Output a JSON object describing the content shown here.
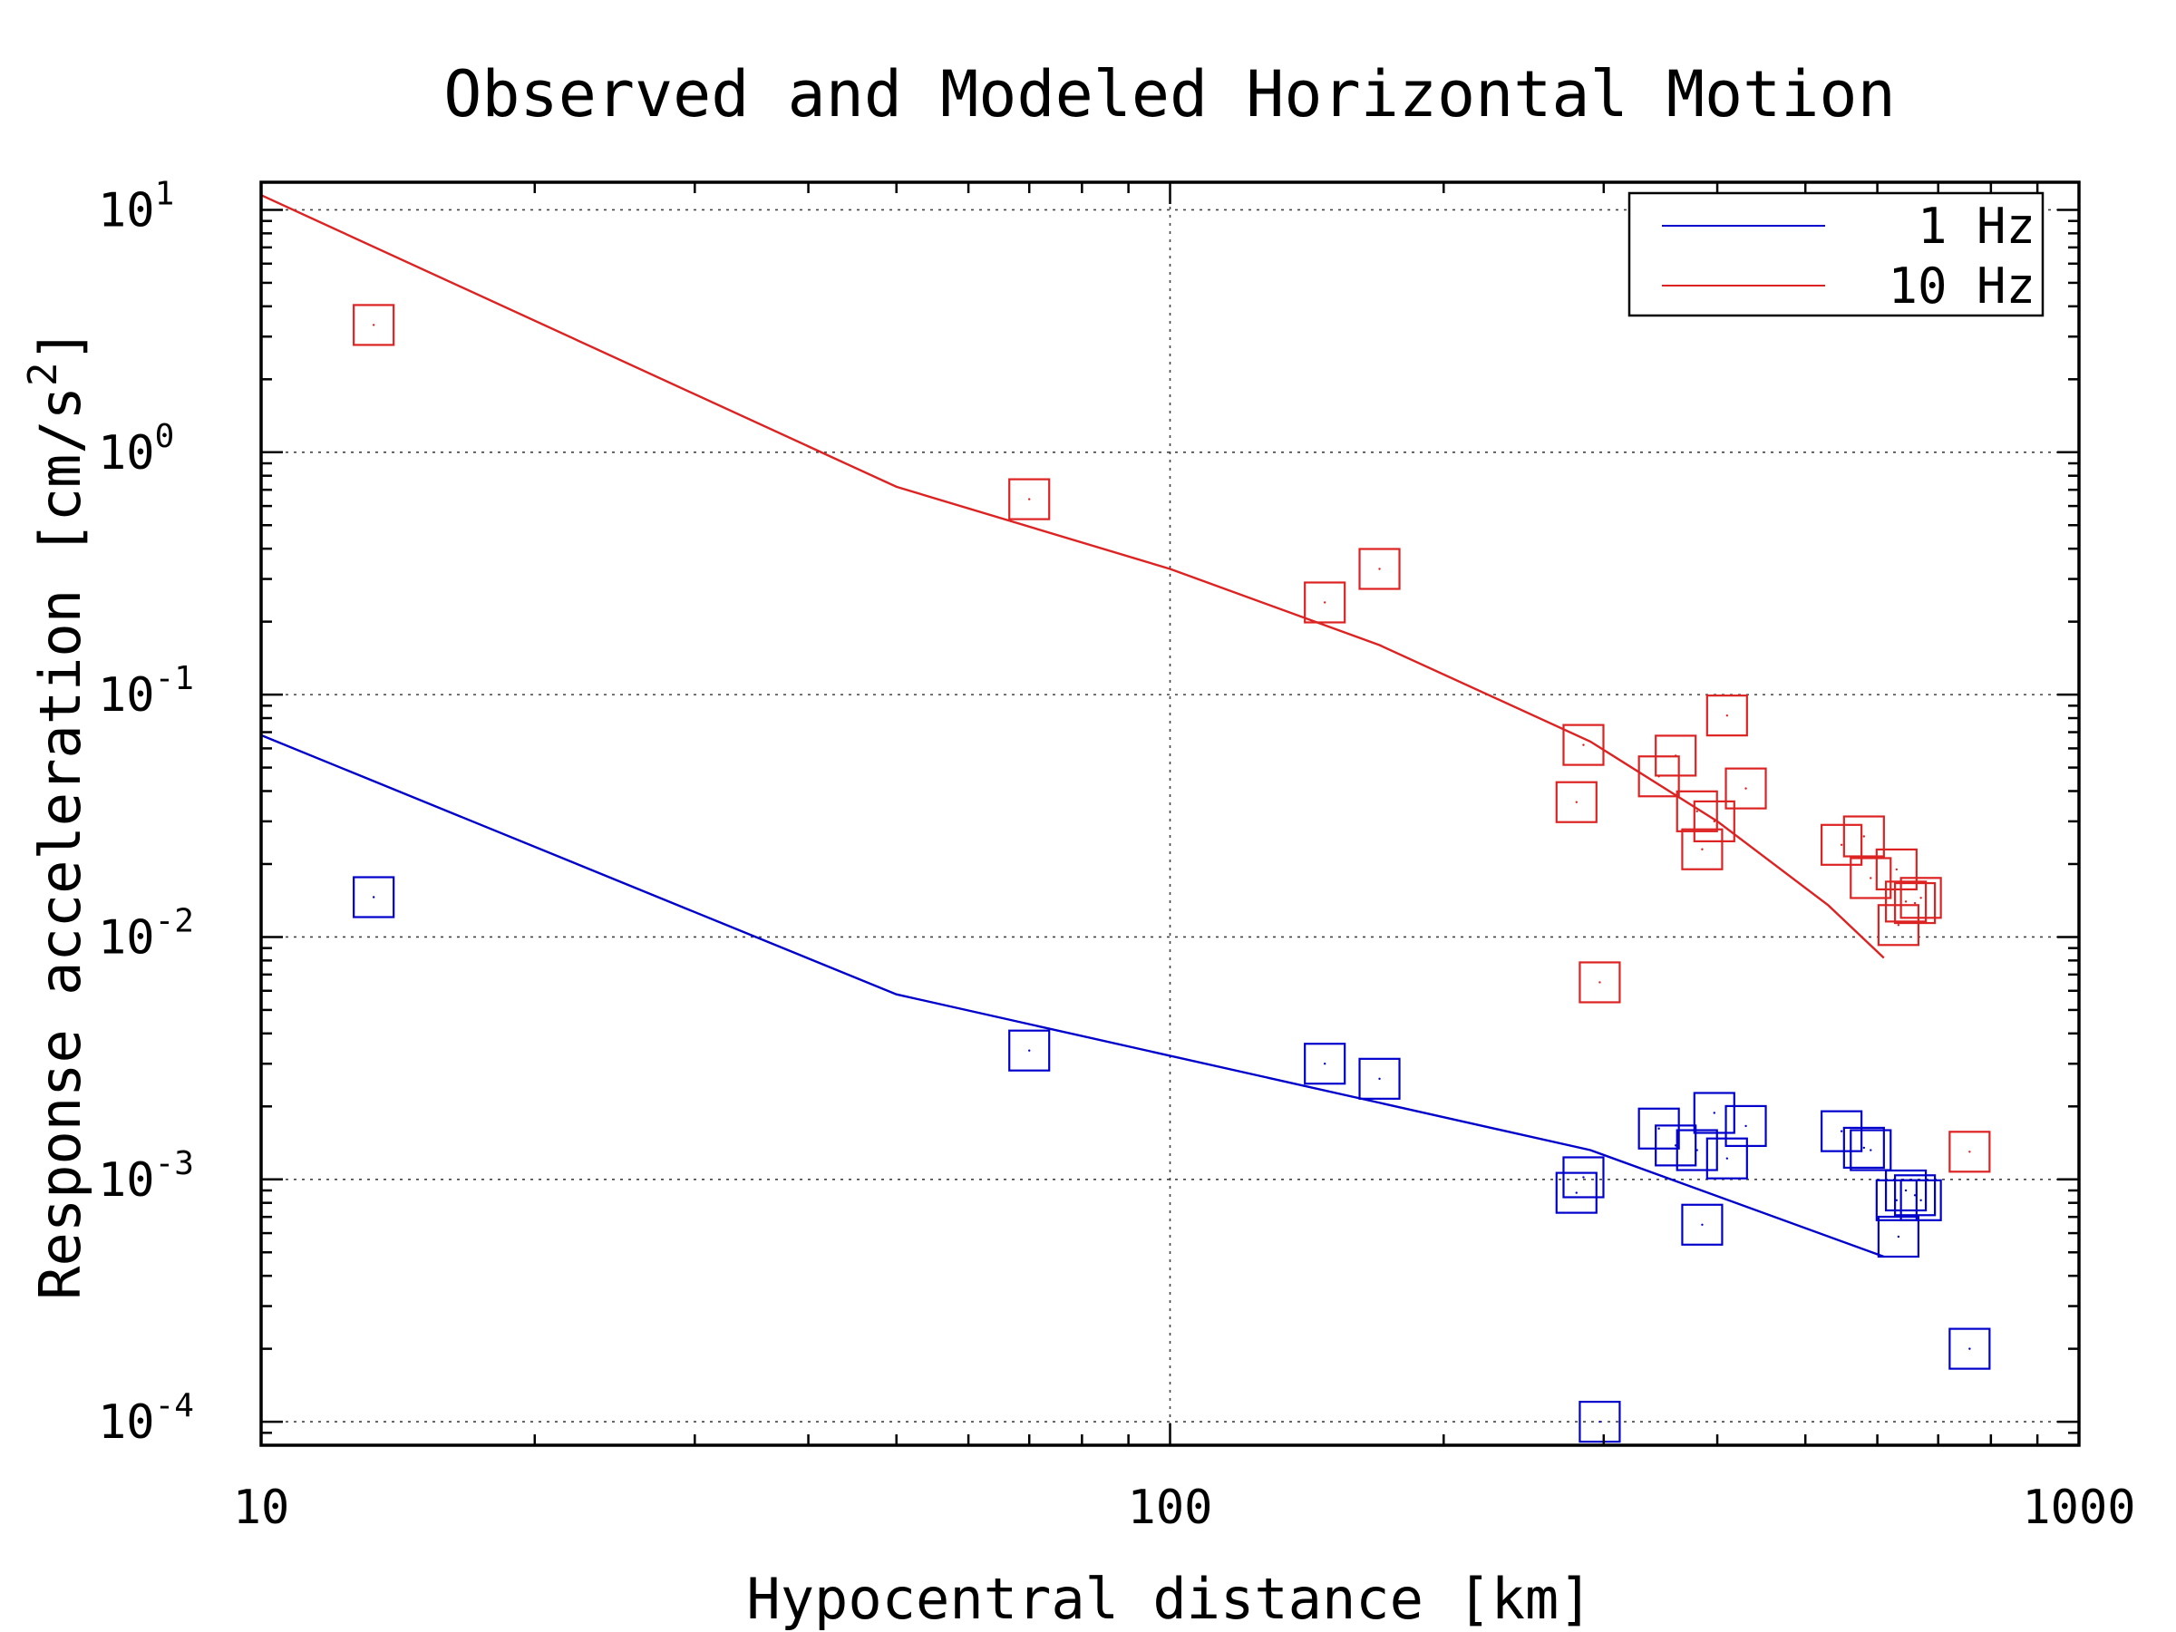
{
  "chart_data": {
    "type": "scatter",
    "title": "Observed and Modeled Horizontal Motion",
    "xlabel": "Hypocentral distance [km]",
    "ylabel": "Response acceleration [cm/s",
    "ylabel_superscript": "2",
    "ylabel_suffix": "]",
    "xscale": "log",
    "yscale": "log",
    "xlim": [
      10,
      1000
    ],
    "ylim": [
      8e-05,
      13
    ],
    "grid": true,
    "legend_position": "top-right",
    "x_ticks": [
      {
        "value": 10,
        "label": "10"
      },
      {
        "value": 100,
        "label": "100"
      },
      {
        "value": 1000,
        "label": "1000"
      }
    ],
    "y_ticks": [
      {
        "value": 10,
        "base": "10",
        "exp": "1"
      },
      {
        "value": 1,
        "base": "10",
        "exp": "0"
      },
      {
        "value": 0.1,
        "base": "10",
        "exp": "-1"
      },
      {
        "value": 0.01,
        "base": "10",
        "exp": "-2"
      },
      {
        "value": 0.001,
        "base": "10",
        "exp": "-3"
      },
      {
        "value": 0.0001,
        "base": "10",
        "exp": "-4"
      }
    ],
    "series": [
      {
        "name": "1 Hz",
        "color": "#0000cc",
        "model_x": [
          10,
          50,
          290,
          610
        ],
        "model_y": [
          0.068,
          0.0058,
          0.00132,
          0.00048
        ],
        "observed": [
          [
            13.3,
            0.0146
          ],
          [
            70,
            0.0034
          ],
          [
            148,
            0.003
          ],
          [
            170,
            0.0026
          ],
          [
            280,
            0.00088
          ],
          [
            285,
            0.00102
          ],
          [
            297,
            0.0001
          ],
          [
            345,
            0.00162
          ],
          [
            360,
            0.00138
          ],
          [
            380,
            0.00132
          ],
          [
            385,
            0.00065
          ],
          [
            397,
            0.00188
          ],
          [
            410,
            0.00122
          ],
          [
            430,
            0.00166
          ],
          [
            548,
            0.00158
          ],
          [
            580,
            0.00135
          ],
          [
            590,
            0.00132
          ],
          [
            630,
            0.00082
          ],
          [
            633,
            0.00058
          ],
          [
            645,
            0.0009
          ],
          [
            660,
            0.00086
          ],
          [
            670,
            0.00082
          ],
          [
            758,
            0.0002
          ]
        ]
      },
      {
        "name": "10 Hz",
        "color": "#dd2222",
        "model_x": [
          10,
          50,
          100,
          170,
          290,
          400,
          530,
          610
        ],
        "model_y": [
          11.5,
          0.72,
          0.33,
          0.16,
          0.064,
          0.03,
          0.0135,
          0.0082
        ],
        "observed": [
          [
            13.3,
            3.35
          ],
          [
            70,
            0.64
          ],
          [
            148,
            0.24
          ],
          [
            170,
            0.33
          ],
          [
            280,
            0.036
          ],
          [
            285,
            0.062
          ],
          [
            297,
            0.0065
          ],
          [
            345,
            0.046
          ],
          [
            360,
            0.056
          ],
          [
            380,
            0.033
          ],
          [
            385,
            0.023
          ],
          [
            397,
            0.03
          ],
          [
            410,
            0.082
          ],
          [
            430,
            0.041
          ],
          [
            548,
            0.024
          ],
          [
            580,
            0.026
          ],
          [
            590,
            0.0175
          ],
          [
            630,
            0.019
          ],
          [
            633,
            0.0112
          ],
          [
            645,
            0.014
          ],
          [
            660,
            0.0138
          ],
          [
            670,
            0.0145
          ],
          [
            758,
            0.0013
          ]
        ]
      }
    ]
  }
}
